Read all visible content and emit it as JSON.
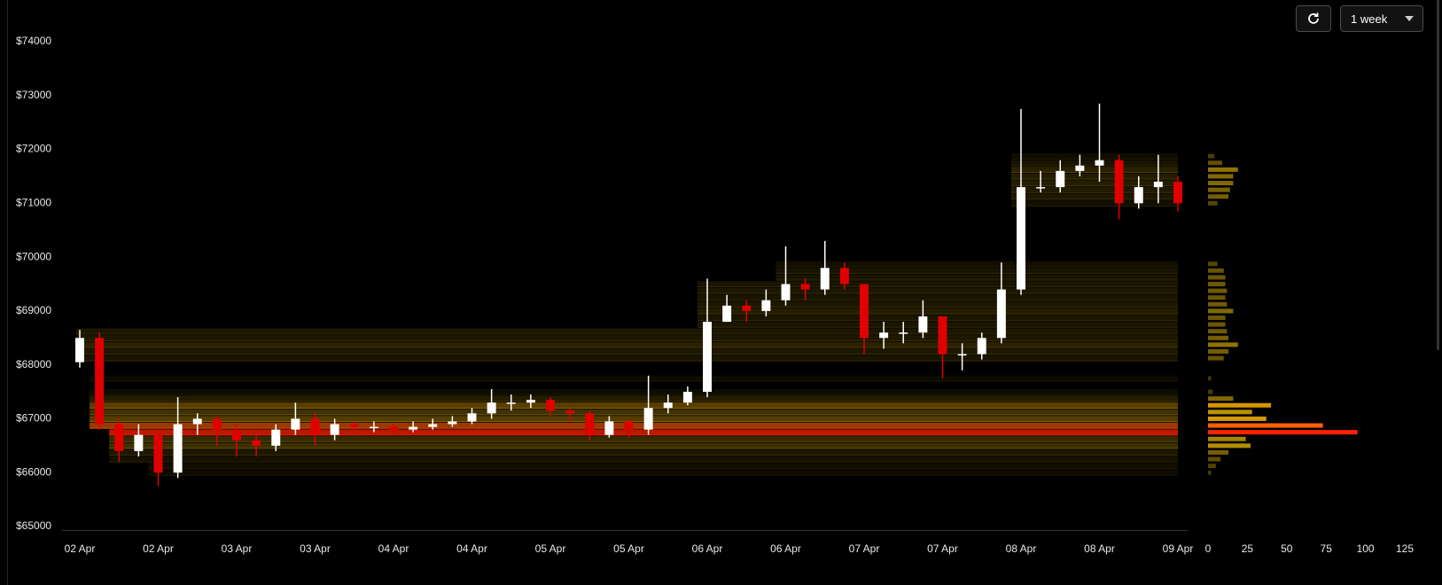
{
  "controls": {
    "range": "1 week"
  },
  "chart_data": [
    {
      "type": "candlestick",
      "categories": [
        "02 Apr",
        null,
        null,
        null,
        "02 Apr",
        null,
        null,
        null,
        "03 Apr",
        null,
        null,
        null,
        "03 Apr",
        null,
        null,
        null,
        "04 Apr",
        null,
        null,
        null,
        "04 Apr",
        null,
        null,
        null,
        "05 Apr",
        null,
        null,
        null,
        "05 Apr",
        null,
        null,
        null,
        "06 Apr",
        null,
        null,
        null,
        "06 Apr",
        null,
        null,
        null,
        "07 Apr",
        null,
        null,
        null,
        "07 Apr",
        null,
        null,
        null,
        "08 Apr",
        null,
        null,
        null,
        "08 Apr",
        null,
        null,
        null,
        "09 Apr"
      ],
      "open": [
        68050,
        68500,
        66900,
        66400,
        66700,
        66000,
        66900,
        67000,
        66800,
        66600,
        66500,
        66800,
        67000,
        66700,
        66900,
        66850,
        66850,
        66800,
        66850,
        66900,
        66950,
        67100,
        67300,
        67300,
        67350,
        67150,
        67100,
        66700,
        66950,
        66800,
        67200,
        67300,
        67500,
        68800,
        69100,
        69000,
        69200,
        69500,
        69400,
        69800,
        69500,
        68500,
        68600,
        68600,
        68900,
        68200,
        68200,
        68500,
        69400,
        71300,
        71300,
        71600,
        71700,
        71800,
        71000,
        71300,
        71400
      ],
      "high": [
        68650,
        68600,
        67000,
        66900,
        66800,
        67400,
        67100,
        67050,
        66900,
        66700,
        66900,
        67300,
        67100,
        67000,
        66950,
        66950,
        66900,
        66950,
        67000,
        67050,
        67200,
        67550,
        67450,
        67450,
        67400,
        67200,
        67150,
        67050,
        67000,
        67800,
        67450,
        67600,
        69600,
        69300,
        69200,
        69400,
        70200,
        69600,
        70300,
        69900,
        69500,
        68800,
        68800,
        69200,
        68900,
        68400,
        68600,
        69900,
        72750,
        71600,
        71800,
        71900,
        72850,
        71900,
        71500,
        71900,
        71500
      ],
      "low": [
        67950,
        66800,
        66200,
        66300,
        65750,
        65900,
        66700,
        66500,
        66300,
        66300,
        66400,
        66700,
        66500,
        66600,
        66750,
        66750,
        66700,
        66750,
        66800,
        66850,
        66900,
        67000,
        67150,
        67200,
        67050,
        66950,
        66600,
        66650,
        66650,
        66700,
        67100,
        67250,
        67400,
        68800,
        68800,
        68900,
        69100,
        69200,
        69300,
        69400,
        68200,
        68300,
        68400,
        68500,
        67750,
        67900,
        68100,
        68400,
        69300,
        71200,
        71200,
        71500,
        71400,
        70700,
        70900,
        71000,
        70850
      ],
      "close": [
        68500,
        66900,
        66400,
        66700,
        66000,
        66900,
        67000,
        66800,
        66600,
        66500,
        66800,
        67000,
        66700,
        66900,
        66850,
        66850,
        66800,
        66850,
        66900,
        66950,
        67100,
        67300,
        67300,
        67350,
        67150,
        67100,
        66700,
        66950,
        66800,
        67200,
        67300,
        67500,
        68800,
        69100,
        69000,
        69200,
        69500,
        69400,
        69800,
        69500,
        68500,
        68600,
        68600,
        68900,
        68200,
        68200,
        68500,
        69400,
        71300,
        71300,
        71600,
        71700,
        71800,
        71000,
        71300,
        71400,
        71000
      ],
      "up_color": "#ffffff",
      "down_color": "#e00000",
      "ylim": [
        65000,
        74000
      ],
      "yticks": [
        {
          "value": 65000,
          "label": "$65000"
        },
        {
          "value": 66000,
          "label": "$66000"
        },
        {
          "value": 67000,
          "label": "$67000"
        },
        {
          "value": 68000,
          "label": "$68000"
        },
        {
          "value": 69000,
          "label": "$69000"
        },
        {
          "value": 70000,
          "label": "$70000"
        },
        {
          "value": 71000,
          "label": "$71000"
        },
        {
          "value": 72000,
          "label": "$72000"
        },
        {
          "value": 73000,
          "label": "$73000"
        },
        {
          "value": 74000,
          "label": "$74000"
        }
      ]
    },
    {
      "type": "bar",
      "orientation": "horizontal",
      "y": [
        71875,
        71750,
        71625,
        71500,
        71375,
        71250,
        71125,
        71000,
        69875,
        69750,
        69625,
        69500,
        69375,
        69250,
        69125,
        69000,
        68875,
        68750,
        68625,
        68500,
        68375,
        68250,
        68125,
        67750,
        67500,
        67375,
        67250,
        67125,
        67000,
        66875,
        66750,
        66625,
        66500,
        66375,
        66250,
        66125,
        66000
      ],
      "values": [
        4,
        9,
        19,
        16,
        16,
        14,
        13,
        6,
        6,
        10,
        11,
        11,
        12,
        11,
        12,
        16,
        11,
        11,
        12,
        13,
        19,
        13,
        10,
        2,
        3,
        16,
        40,
        28,
        37,
        73,
        95,
        24,
        27,
        13,
        8,
        5,
        2
      ],
      "color_scale": [
        "#3a3000",
        "#c9a000",
        "#ff7a00",
        "#ff2200"
      ],
      "xlim": [
        0,
        125
      ],
      "xticks": [
        0,
        25,
        50,
        75,
        100,
        125
      ]
    }
  ]
}
